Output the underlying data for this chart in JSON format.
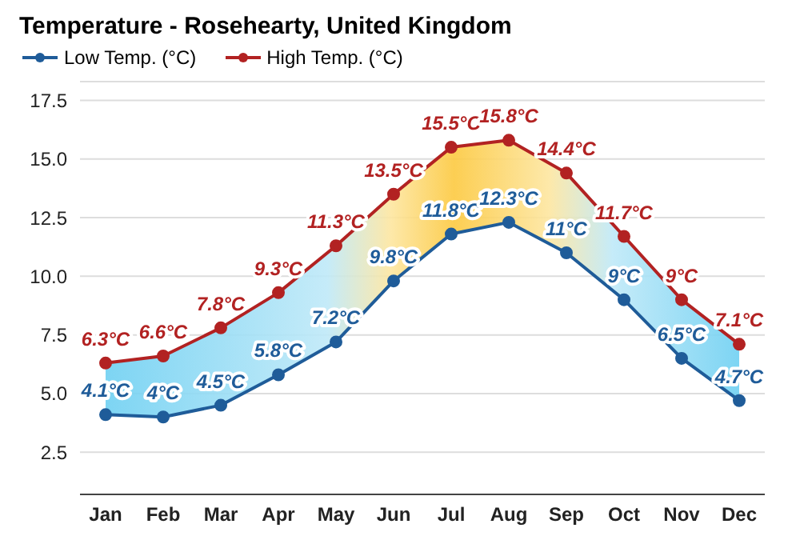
{
  "chart_data": {
    "type": "line",
    "title": "Temperature - Rosehearty, United Kingdom",
    "categories": [
      "Jan",
      "Feb",
      "Mar",
      "Apr",
      "May",
      "Jun",
      "Jul",
      "Aug",
      "Sep",
      "Oct",
      "Nov",
      "Dec"
    ],
    "series": [
      {
        "name": "Low Temp. (°C)",
        "color": "#1f5c99",
        "values": [
          4.1,
          4,
          4.5,
          5.8,
          7.2,
          9.8,
          11.8,
          12.3,
          11,
          9,
          6.5,
          4.7
        ],
        "value_labels": [
          "4.1°C",
          "4°C",
          "4.5°C",
          "5.8°C",
          "7.2°C",
          "9.8°C",
          "11.8°C",
          "12.3°C",
          "11°C",
          "9°C",
          "6.5°C",
          "4.7°C"
        ]
      },
      {
        "name": "High Temp. (°C)",
        "color": "#b22222",
        "values": [
          6.3,
          6.6,
          7.8,
          9.3,
          11.3,
          13.5,
          15.5,
          15.8,
          14.4,
          11.7,
          9,
          7.1
        ],
        "value_labels": [
          "6.3°C",
          "6.6°C",
          "7.8°C",
          "9.3°C",
          "11.3°C",
          "13.5°C",
          "15.5°C",
          "15.8°C",
          "14.4°C",
          "11.7°C",
          "9°C",
          "7.1°C"
        ]
      }
    ],
    "ylim": [
      0.7,
      18.3
    ],
    "yticks": [
      2.5,
      {
        "value": 5,
        "label": "5.0"
      },
      7.5,
      {
        "value": 10,
        "label": "10.0"
      },
      12.5,
      {
        "value": 15,
        "label": "15.0"
      },
      17.5
    ],
    "grid": "y",
    "legend": "top left",
    "marker": "circle",
    "line_style": "solid"
  }
}
